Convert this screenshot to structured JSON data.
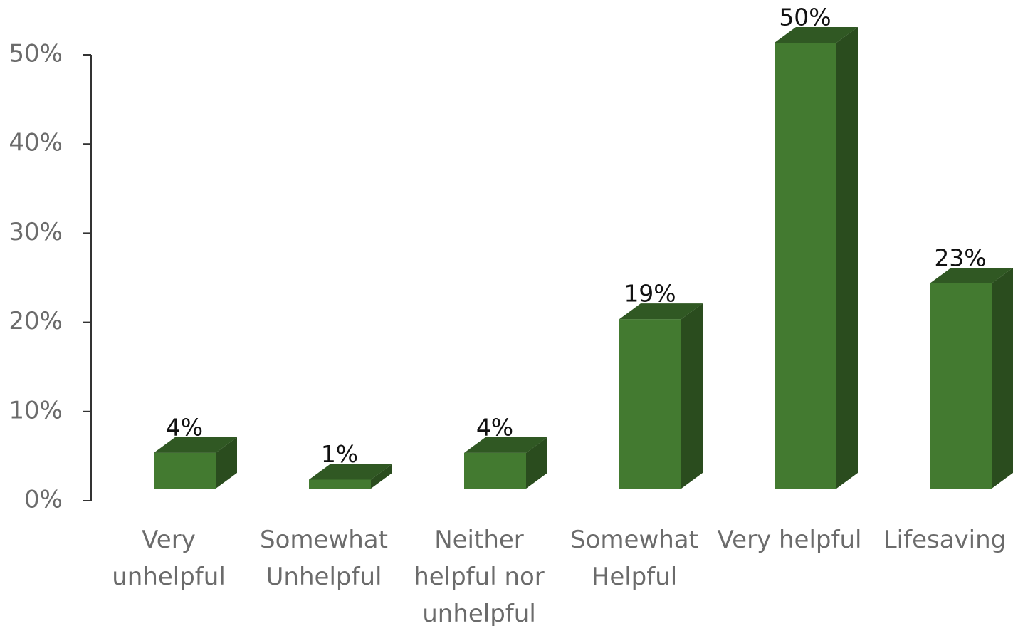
{
  "chart_data": {
    "type": "bar",
    "categories": [
      "Very unhelpful",
      "Somewhat Unhelpful",
      "Neither helpful nor unhelpful",
      "Somewhat Helpful",
      "Very helpful",
      "Lifesaving"
    ],
    "values": [
      4,
      1,
      4,
      19,
      50,
      23
    ],
    "value_labels": [
      "4%",
      "1%",
      "4%",
      "19%",
      "50%",
      "23%"
    ],
    "color": "#437a30",
    "ylim": [
      0,
      50
    ],
    "yticks": [
      {
        "value": 0,
        "label": "0%"
      },
      {
        "value": 10,
        "label": "10%"
      },
      {
        "value": 20,
        "label": "20%"
      },
      {
        "value": 30,
        "label": "30%"
      },
      {
        "value": 40,
        "label": "40%"
      },
      {
        "value": 50,
        "label": "50%"
      }
    ]
  }
}
